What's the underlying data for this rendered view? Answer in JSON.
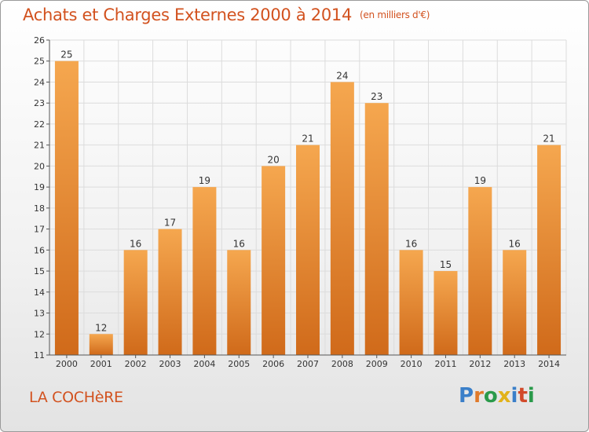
{
  "header": {
    "title": "Achats et Charges Externes 2000 à 2014",
    "unit": "(en milliers d'€)"
  },
  "footer": {
    "commune": "LA COCHèRE",
    "logo_text": "Proxiti",
    "logo_letters": [
      {
        "ch": "P",
        "color": "#3a7fc9"
      },
      {
        "ch": "r",
        "color": "#e07a2a"
      },
      {
        "ch": "o",
        "color": "#2a9a4a"
      },
      {
        "ch": "x",
        "color": "#e2b21a"
      },
      {
        "ch": "i",
        "color": "#3a7fc9"
      },
      {
        "ch": "t",
        "color": "#d24a2a"
      },
      {
        "ch": "i",
        "color": "#2a9a4a"
      }
    ]
  },
  "colors": {
    "title": "#d2521f",
    "bar_top": "#f5a74f",
    "bar_bottom": "#d06a1a",
    "grid": "#dcdcdc"
  },
  "chart_data": {
    "type": "bar",
    "title": "Achats et Charges Externes 2000 à 2014",
    "subtitle": "(en milliers d'€)",
    "categories": [
      "2000",
      "2001",
      "2002",
      "2003",
      "2004",
      "2005",
      "2006",
      "2007",
      "2008",
      "2009",
      "2010",
      "2011",
      "2012",
      "2013",
      "2014"
    ],
    "values": [
      25,
      12,
      16,
      17,
      19,
      16,
      20,
      21,
      24,
      23,
      16,
      15,
      19,
      16,
      21
    ],
    "yticks": [
      11,
      12,
      13,
      14,
      15,
      16,
      17,
      18,
      19,
      20,
      21,
      22,
      23,
      24,
      25,
      26
    ],
    "ylim": [
      11,
      26
    ],
    "grid": true,
    "legend": "none"
  }
}
